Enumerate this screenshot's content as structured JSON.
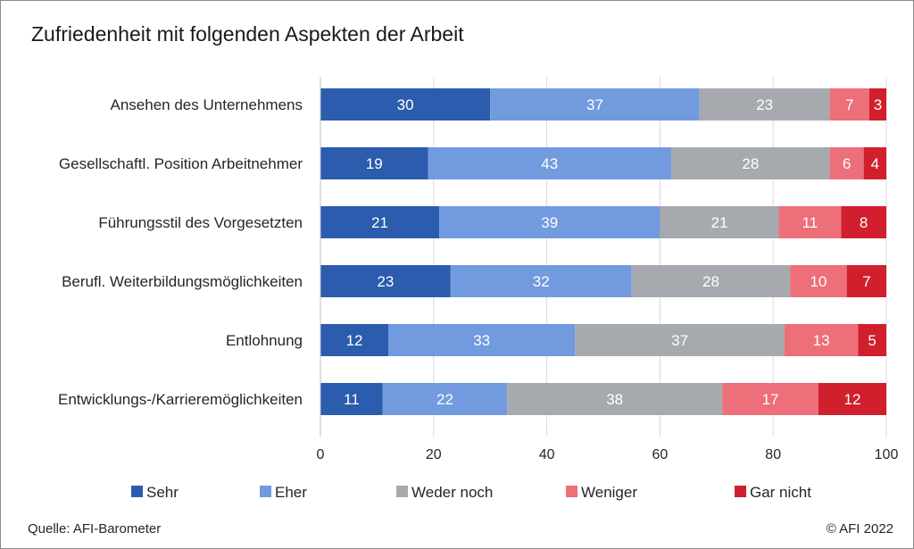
{
  "header": {
    "title": "Zufriedenheit mit folgenden Aspekten der Arbeit"
  },
  "footer": {
    "source": "Quelle: AFI-Barometer",
    "copyright": "© AFI 2022"
  },
  "chart_data": {
    "type": "bar",
    "orientation": "horizontal",
    "stacked": true,
    "title": "Zufriedenheit mit folgenden Aspekten der Arbeit",
    "categories": [
      "Ansehen des Unternehmens",
      "Gesellschaftl. Position Arbeitnehmer",
      "Führungsstil des Vorgesetzten",
      "Berufl. Weiterbildungsmöglichkeiten",
      "Entlohnung",
      "Entwicklungs-/Karrieremöglichkeiten"
    ],
    "series": [
      {
        "name": "Sehr",
        "color": "#2b5cad",
        "values": [
          30,
          19,
          21,
          23,
          12,
          11
        ]
      },
      {
        "name": "Eher",
        "color": "#729ade",
        "values": [
          37,
          43,
          39,
          32,
          33,
          22
        ]
      },
      {
        "name": "Weder noch",
        "color": "#a6a9ae",
        "values": [
          23,
          28,
          21,
          28,
          37,
          38
        ]
      },
      {
        "name": "Weniger",
        "color": "#ed6f7a",
        "values": [
          7,
          6,
          11,
          10,
          13,
          17
        ]
      },
      {
        "name": "Gar nicht",
        "color": "#d11f2e",
        "values": [
          3,
          4,
          8,
          7,
          5,
          12
        ]
      }
    ],
    "xlim": [
      0,
      100
    ],
    "xticks": [
      0,
      20,
      40,
      60,
      80,
      100
    ],
    "grid": true,
    "legend_position": "bottom",
    "xlabel": "",
    "ylabel": ""
  }
}
